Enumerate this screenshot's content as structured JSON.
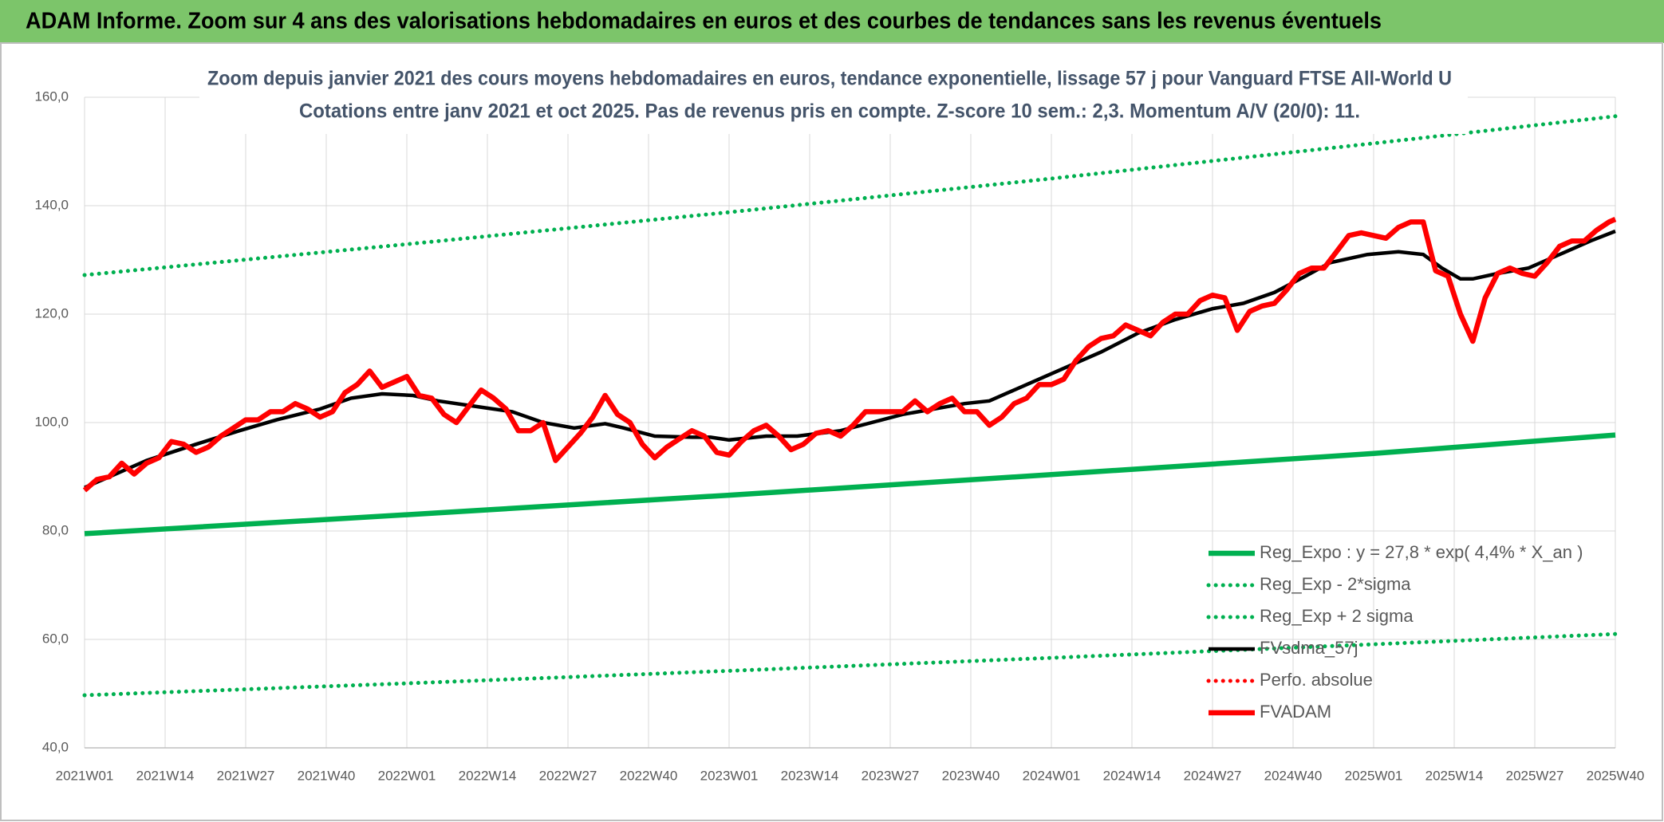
{
  "chart_data": {
    "type": "line",
    "header": "ADAM Informe. Zoom sur 4 ans des valorisations hebdomadaires en euros et des courbes de tendances sans les revenus éventuels",
    "title": "Zoom depuis janvier 2021 des cours moyens hebdomadaires en euros, tendance exponentielle, lissage 57 j pour Vanguard FTSE All-World U",
    "subtitle": "Cotations entre janv 2021 et oct 2025. Pas de revenus pris en compte. Z-score 10 sem.: 2,3. Momentum A/V (20/0): 11.",
    "xlim": [
      0,
      247
    ],
    "xticks": [
      {
        "value": 0,
        "label": "2021W01"
      },
      {
        "value": 13,
        "label": "2021W14"
      },
      {
        "value": 26,
        "label": "2021W27"
      },
      {
        "value": 39,
        "label": "2021W40"
      },
      {
        "value": 52,
        "label": "2022W01"
      },
      {
        "value": 65,
        "label": "2022W14"
      },
      {
        "value": 78,
        "label": "2022W27"
      },
      {
        "value": 91,
        "label": "2022W40"
      },
      {
        "value": 104,
        "label": "2023W01"
      },
      {
        "value": 117,
        "label": "2023W14"
      },
      {
        "value": 130,
        "label": "2023W27"
      },
      {
        "value": 143,
        "label": "2023W40"
      },
      {
        "value": 156,
        "label": "2024W01"
      },
      {
        "value": 169,
        "label": "2024W14"
      },
      {
        "value": 182,
        "label": "2024W27"
      },
      {
        "value": 195,
        "label": "2024W40"
      },
      {
        "value": 208,
        "label": "2025W01"
      },
      {
        "value": 221,
        "label": "2025W14"
      },
      {
        "value": 234,
        "label": "2025W27"
      },
      {
        "value": 247,
        "label": "2025W40"
      }
    ],
    "ylim": [
      40,
      160
    ],
    "yticks": [
      {
        "value": 40,
        "label": "40,0"
      },
      {
        "value": 60,
        "label": "60,0"
      },
      {
        "value": 80,
        "label": "80,0"
      },
      {
        "value": 100,
        "label": "100,0"
      },
      {
        "value": 120,
        "label": "120,0"
      },
      {
        "value": 140,
        "label": "140,0"
      },
      {
        "value": 160,
        "label": "160,0"
      }
    ],
    "grid": true,
    "legend": "lower right",
    "series": [
      {
        "name": "Reg_Expo : y = 27,8 * exp( 4,4% *  X_an )",
        "color": "#00b050",
        "style": "solid",
        "x": [
          0,
          52,
          104,
          156,
          208,
          247
        ],
        "values": [
          79.5,
          83.0,
          86.6,
          90.4,
          94.3,
          97.7
        ]
      },
      {
        "name": "Reg_Exp - 2*sigma",
        "color": "#00b050",
        "style": "dotted",
        "x": [
          0,
          52,
          104,
          156,
          208,
          247
        ],
        "values": [
          49.7,
          51.9,
          54.2,
          56.6,
          59.1,
          61.0
        ]
      },
      {
        "name": "Reg_Exp + 2 sigma",
        "color": "#00b050",
        "style": "dotted",
        "x": [
          0,
          52,
          104,
          156,
          208,
          247
        ],
        "values": [
          127.2,
          132.9,
          138.8,
          145.0,
          151.5,
          156.5
        ]
      },
      {
        "name": "FVsdma_57j",
        "color": "#000000",
        "style": "solid",
        "x": [
          0,
          10,
          18,
          25,
          31,
          38,
          43,
          48,
          53,
          57,
          63,
          69,
          74,
          79,
          84,
          87,
          92,
          98,
          101,
          104,
          110,
          115,
          122,
          127,
          132,
          137,
          142,
          146,
          149,
          154,
          159,
          164,
          170,
          176,
          182,
          187,
          192,
          197,
          201,
          207,
          212,
          216,
          219,
          222,
          224,
          228,
          233,
          236,
          240,
          243,
          247
        ],
        "values": [
          88,
          93,
          96,
          98.5,
          100.5,
          102.5,
          104.5,
          105.3,
          105,
          104,
          103,
          102,
          100,
          99,
          99.8,
          99,
          97.5,
          97.3,
          97.3,
          96.8,
          97.5,
          97.5,
          98.5,
          100,
          101.5,
          102.5,
          103.5,
          104,
          105.5,
          108,
          110.5,
          113,
          116.5,
          119,
          121,
          122,
          124,
          127,
          129.5,
          131,
          131.5,
          131,
          128.5,
          126.5,
          126.5,
          127.5,
          128.5,
          130,
          132,
          133.5,
          135.3
        ]
      },
      {
        "name": "Perfo. absolue",
        "color": "#ff0000",
        "style": "dotted"
      },
      {
        "name": "FVADAM",
        "color": "#ff0000",
        "style": "solid",
        "x": [
          0,
          2,
          4,
          6,
          8,
          10,
          12,
          14,
          16,
          18,
          20,
          22,
          24,
          26,
          28,
          30,
          32,
          34,
          36,
          38,
          40,
          42,
          44,
          46,
          48,
          50,
          52,
          54,
          56,
          58,
          60,
          62,
          64,
          66,
          68,
          70,
          72,
          74,
          76,
          78,
          80,
          82,
          84,
          86,
          88,
          90,
          92,
          94,
          96,
          98,
          100,
          102,
          104,
          106,
          108,
          110,
          112,
          114,
          116,
          118,
          120,
          122,
          124,
          126,
          128,
          130,
          132,
          134,
          136,
          138,
          140,
          142,
          144,
          146,
          148,
          150,
          152,
          154,
          156,
          158,
          160,
          162,
          164,
          166,
          168,
          170,
          172,
          174,
          176,
          178,
          180,
          182,
          184,
          186,
          188,
          190,
          192,
          194,
          196,
          198,
          200,
          202,
          204,
          206,
          208,
          210,
          212,
          214,
          216,
          218,
          220,
          222,
          224,
          226,
          228,
          230,
          232,
          234,
          236,
          238,
          240,
          242,
          244,
          246,
          247
        ],
        "values": [
          87.5,
          89.5,
          90,
          92.5,
          90.5,
          92.5,
          93.5,
          96.5,
          96,
          94.5,
          95.5,
          97.5,
          99,
          100.5,
          100.5,
          102,
          102,
          103.5,
          102.5,
          101,
          102,
          105.5,
          107,
          109.5,
          106.5,
          107.5,
          108.5,
          105,
          104.5,
          101.5,
          100,
          103,
          106,
          104.5,
          102.5,
          98.5,
          98.5,
          100,
          93,
          95.5,
          98,
          101,
          105,
          101.5,
          100,
          96,
          93.5,
          95.5,
          97,
          98.5,
          97.5,
          94.5,
          94,
          96.5,
          98.5,
          99.5,
          97.5,
          95,
          96,
          98,
          98.5,
          97.5,
          99.5,
          102,
          102,
          102,
          102,
          104,
          102,
          103.5,
          104.5,
          102,
          102,
          99.5,
          101,
          103.5,
          104.5,
          107,
          107,
          108,
          111.5,
          114,
          115.5,
          116,
          118,
          117,
          116,
          118.5,
          120,
          120,
          122.5,
          123.5,
          123,
          117,
          120.5,
          121.5,
          122,
          124.5,
          127.5,
          128.5,
          128.5,
          131.5,
          134.5,
          135,
          134.5,
          134,
          136,
          137,
          137,
          128,
          127,
          120,
          115,
          123,
          127.5,
          128.5,
          127.5,
          127,
          129.5,
          132.5,
          133.5,
          133.5,
          135.5,
          137,
          137.5
        ]
      }
    ]
  }
}
